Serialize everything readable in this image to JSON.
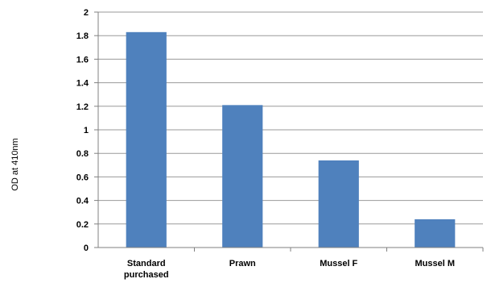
{
  "chart_data": {
    "type": "bar",
    "categories": [
      [
        "Standard",
        "purchased"
      ],
      [
        "Prawn"
      ],
      [
        "Mussel F"
      ],
      [
        "Mussel M"
      ]
    ],
    "values": [
      1.83,
      1.21,
      0.74,
      0.24
    ],
    "title": "",
    "xlabel": "",
    "ylabel": "OD at 410nm",
    "ylim": [
      0,
      2
    ],
    "yticks": [
      "0",
      "0.2",
      "0.4",
      "0.6",
      "0.8",
      "1",
      "1.2",
      "1.4",
      "1.6",
      "1.8",
      "2"
    ],
    "grid": true,
    "bar_color": "#4f81bd",
    "grid_color": "#9a9a9a"
  }
}
